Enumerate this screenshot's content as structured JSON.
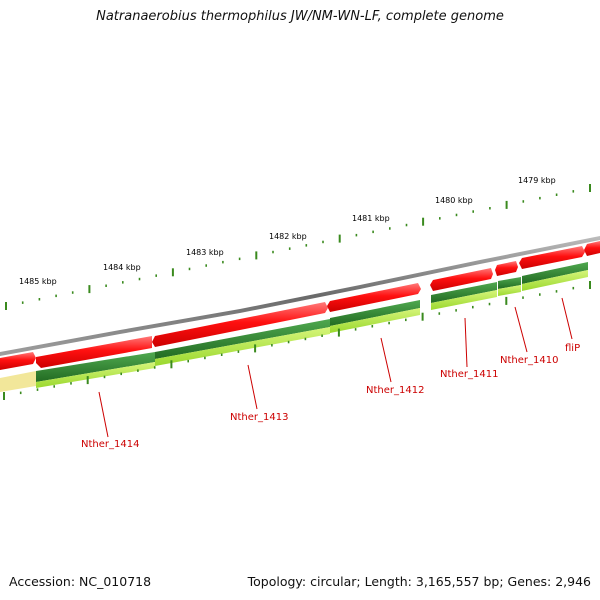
{
  "title": "Natranaerobius thermophilus JW/NM-WN-LF, complete genome",
  "footer": {
    "accession": "Accession: NC_010718",
    "summary": "Topology: circular; Length: 3,165,557 bp; Genes: 2,946"
  },
  "kbp_labels": [
    "1479 kbp",
    "1480 kbp",
    "1481 kbp",
    "1482 kbp",
    "1483 kbp",
    "1484 kbp",
    "1485 kbp"
  ],
  "gene_labels": [
    "fliP",
    "Nther_1410",
    "Nther_1411",
    "Nther_1412",
    "Nther_1413",
    "Nther_1414"
  ],
  "colors": {
    "backbone": "#8a8a8a",
    "cds": "#e01010",
    "gene_dark": "#2e8b2e",
    "gene_light": "#a8e040",
    "pale": "#f2e79a",
    "tick": "#3a8a1e",
    "label": "#cc0000"
  }
}
